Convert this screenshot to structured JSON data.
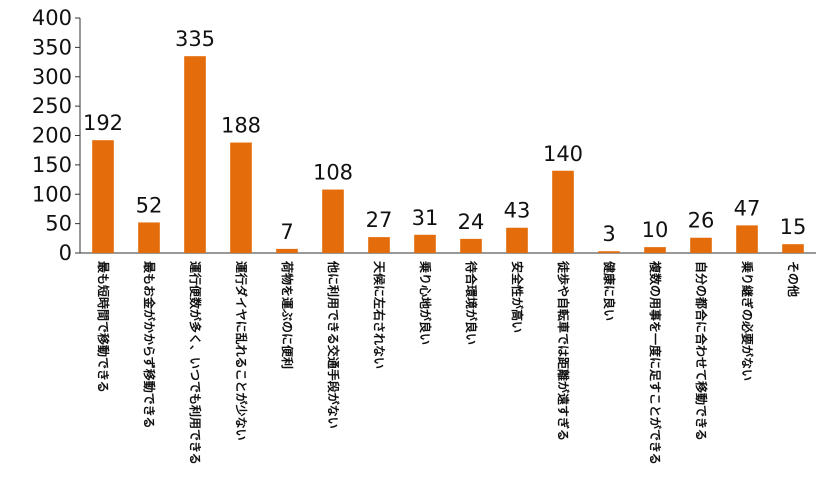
{
  "chart_data": {
    "type": "bar",
    "title": "",
    "xlabel": "",
    "ylabel": "",
    "ylim": [
      0,
      400
    ],
    "yticks": [
      0,
      50,
      100,
      150,
      200,
      250,
      300,
      350,
      400
    ],
    "grid": false,
    "legend": "none",
    "bar_color": "#e46c0a",
    "categories": [
      "最も短時間で移動できる",
      "最もお金がかからず移動できる",
      "運行便数が多く、いつでも利用できる",
      "運行ダイヤに乱れることが少ない",
      "荷物を運ぶのに便利",
      "他に利用できる交通手段がない",
      "天候に左右されない",
      "乗り心地が良い",
      "待合環境が良い",
      "安全性が高い",
      "徒歩や自転車では距離が遠すぎる",
      "健康に良い",
      "複数の用事を一度に足すことができる",
      "自分の都合に合わせて移動できる",
      "乗り継ぎの必要がない",
      "その他"
    ],
    "values": [
      192,
      52,
      335,
      188,
      7,
      108,
      27,
      31,
      24,
      43,
      140,
      3,
      10,
      26,
      47,
      15
    ]
  }
}
